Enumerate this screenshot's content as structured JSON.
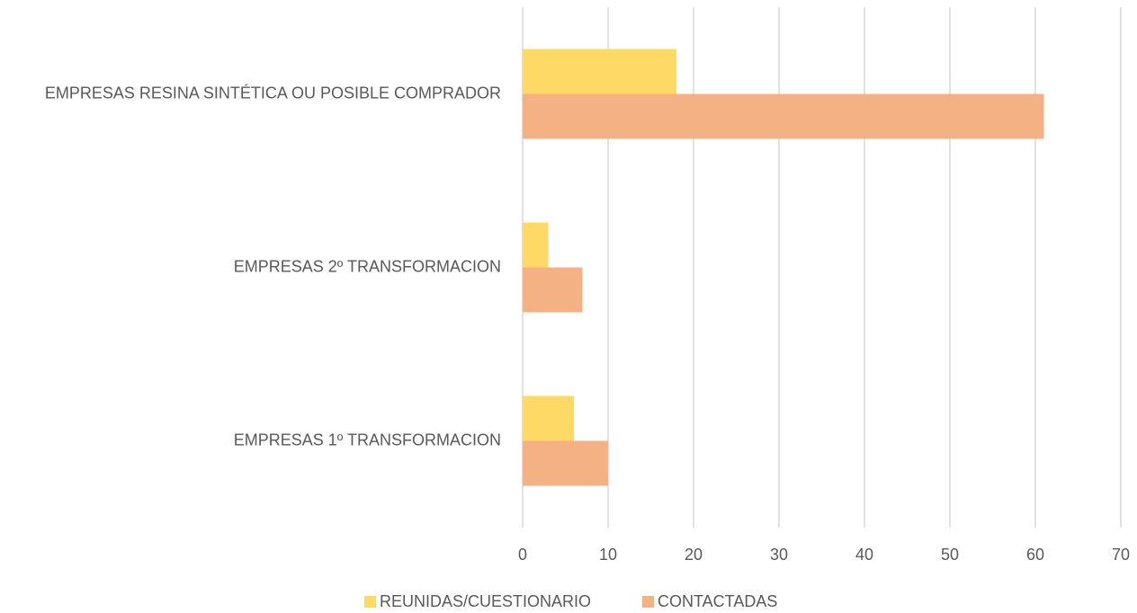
{
  "chart_data": {
    "type": "hbar",
    "categories": [
      "EMPRESAS RESINA SINTÉTICA OU POSIBLE COMPRADOR",
      "EMPRESAS 2º TRANSFORMACION",
      "EMPRESAS 1º TRANSFORMACION"
    ],
    "series": [
      {
        "name": "REUNIDAS/CUESTIONARIO",
        "color": "#FFD966",
        "values": [
          18,
          3,
          6
        ]
      },
      {
        "name": "CONTACTADAS",
        "color": "#F4B183",
        "values": [
          61,
          7,
          10
        ]
      }
    ],
    "xlim": [
      0,
      70
    ],
    "xticks": [
      0,
      10,
      20,
      30,
      40,
      50,
      60,
      70
    ],
    "grid": true,
    "legend": "bottom"
  }
}
